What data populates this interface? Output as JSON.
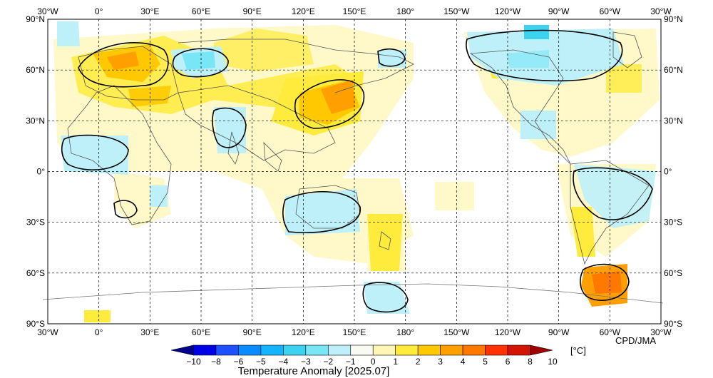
{
  "map": {
    "lon_top": [
      "30°W",
      "0°",
      "30°E",
      "60°E",
      "90°E",
      "120°E",
      "150°E",
      "180°",
      "150°W",
      "120°W",
      "90°W",
      "60°W",
      "30°W"
    ],
    "lon_bottom": [
      "30°W",
      "0°",
      "30°E",
      "60°E",
      "90°E",
      "120°E",
      "150°E",
      "180°",
      "150°W",
      "120°W",
      "90°W",
      "60°W",
      "30°W"
    ],
    "lat_left": [
      "90°N",
      "60°N",
      "30°N",
      "0°",
      "30°S",
      "60°S",
      "90°S"
    ],
    "lat_right": [
      "90°N",
      "60°N",
      "30°N",
      "0°",
      "30°S",
      "60°S",
      "90°S"
    ],
    "credit": "CPD/JMA"
  },
  "legend": {
    "title": "Temperature Anomaly [2025.07]",
    "unit": "[°C]",
    "labels": [
      "−10",
      "−8",
      "−6",
      "−5",
      "−4",
      "−3",
      "−2",
      "−1",
      "0",
      "1",
      "2",
      "3",
      "4",
      "5",
      "6",
      "8",
      "10"
    ],
    "colors": [
      "#00008c",
      "#0000e6",
      "#1e50ff",
      "#0a8cff",
      "#14b4ff",
      "#3cd2f0",
      "#78e6f5",
      "#bef0fa",
      "#fafaf5",
      "#fff5b4",
      "#ffeb3c",
      "#ffc800",
      "#ffa000",
      "#ff7800",
      "#ff3200",
      "#d21400",
      "#a00000"
    ]
  }
}
